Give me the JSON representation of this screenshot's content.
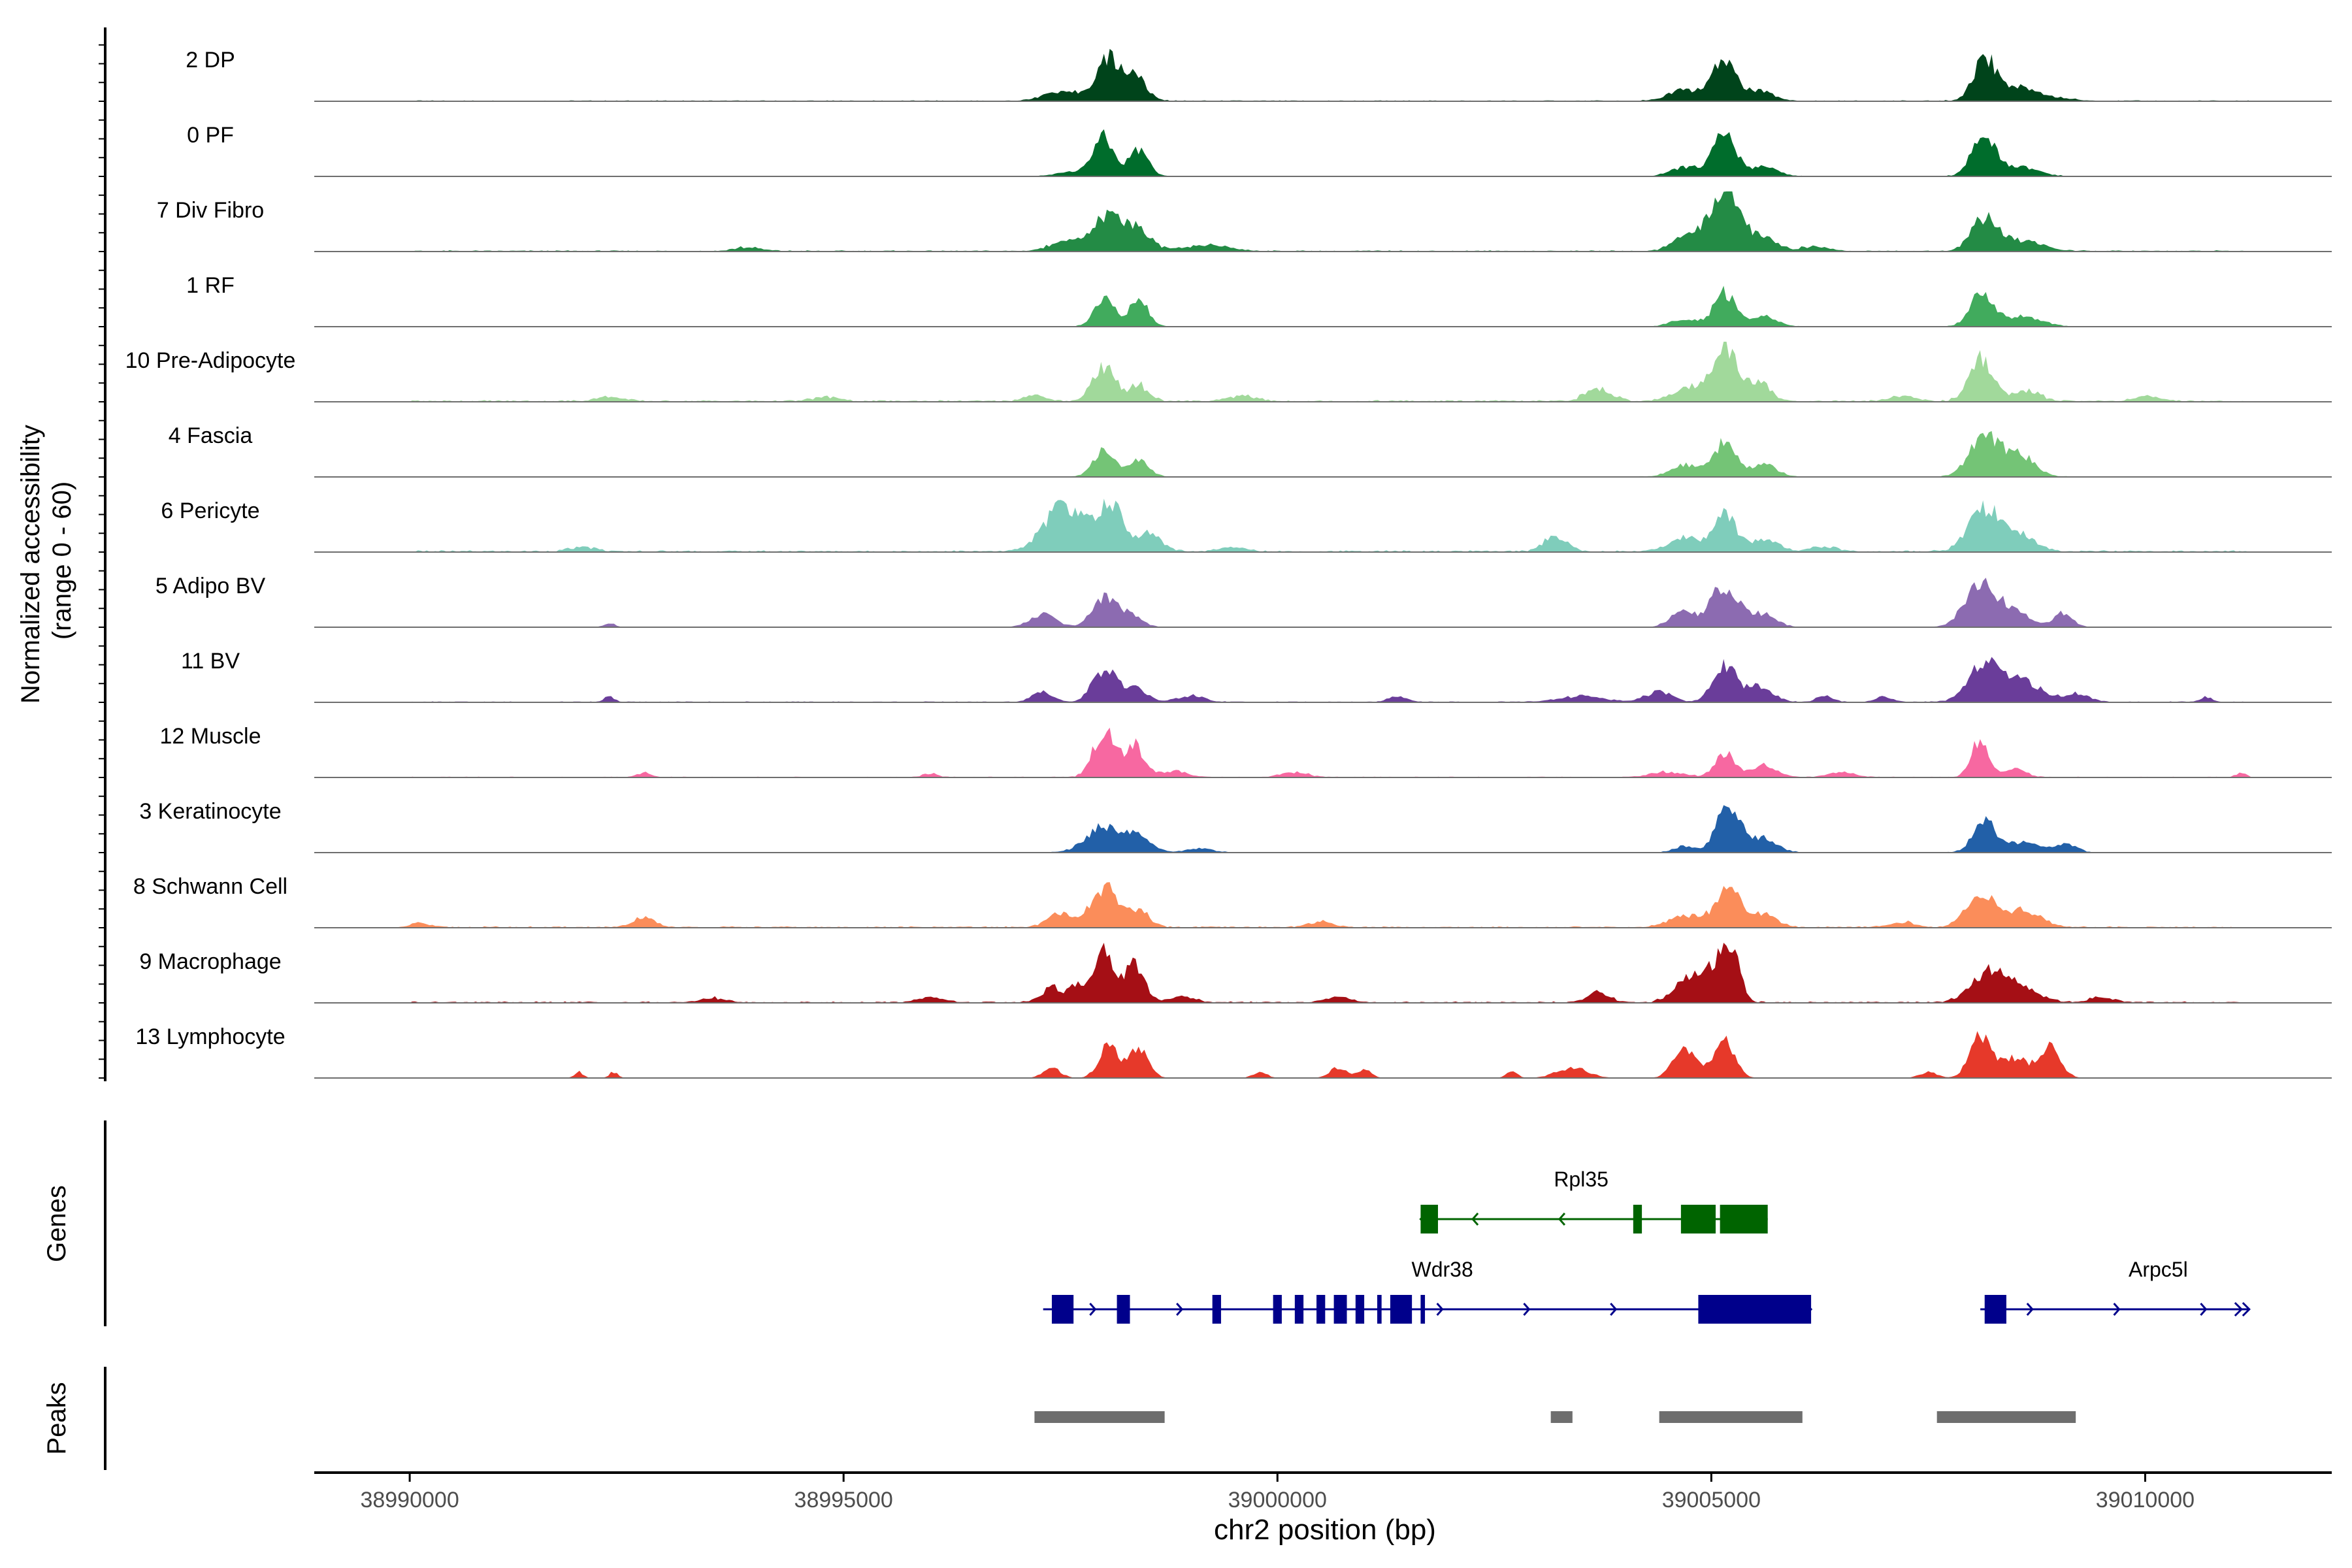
{
  "chart_data": {
    "type": "area",
    "title": "",
    "ylabel_lines": [
      "Normalized accessibility",
      "(range 0 - 60)"
    ],
    "y_range": [
      0,
      60
    ],
    "xlabel": "chr2 position (bp)",
    "xlim": [
      38988900,
      39012150
    ],
    "x_ticks": [
      38990000,
      38995000,
      39000000,
      39005000,
      39010000
    ],
    "x_tick_labels": [
      "38990000",
      "38995000",
      "39000000",
      "39005000",
      "39010000"
    ],
    "tracks": [
      {
        "name": "2 DP",
        "color": "#00441b",
        "background": 1.2,
        "peaks": [
          [
            38998050,
            120,
            34
          ],
          [
            38998350,
            120,
            24
          ],
          [
            38997900,
            320,
            9
          ],
          [
            38997400,
            150,
            5
          ],
          [
            39004700,
            180,
            11
          ],
          [
            39005150,
            130,
            40
          ],
          [
            39005550,
            150,
            10
          ],
          [
            39008150,
            130,
            42
          ],
          [
            39008500,
            180,
            11
          ],
          [
            39008800,
            250,
            5
          ]
        ]
      },
      {
        "name": "0 PF",
        "color": "#006d2c",
        "background": 0.8,
        "peaks": [
          [
            38998000,
            110,
            34
          ],
          [
            38998400,
            110,
            26
          ],
          [
            38997800,
            250,
            6
          ],
          [
            39004700,
            160,
            9
          ],
          [
            39005150,
            130,
            42
          ],
          [
            39005600,
            150,
            10
          ],
          [
            39008130,
            130,
            42
          ],
          [
            39008550,
            200,
            9
          ]
        ]
      },
      {
        "name": "7 Div Fibro",
        "color": "#238b45",
        "background": 1.4,
        "peaks": [
          [
            38998050,
            180,
            32
          ],
          [
            38998400,
            150,
            18
          ],
          [
            38997600,
            200,
            10
          ],
          [
            38999200,
            250,
            6
          ],
          [
            38993900,
            150,
            4
          ],
          [
            39004700,
            150,
            14
          ],
          [
            39005150,
            170,
            62
          ],
          [
            39005600,
            150,
            14
          ],
          [
            39008150,
            150,
            32
          ],
          [
            39008600,
            220,
            10
          ],
          [
            39006200,
            150,
            5
          ]
        ]
      },
      {
        "name": "1 RF",
        "color": "#41ab5d",
        "background": 0.7,
        "peaks": [
          [
            38998000,
            110,
            30
          ],
          [
            38998400,
            110,
            28
          ],
          [
            39004700,
            150,
            8
          ],
          [
            39005150,
            120,
            34
          ],
          [
            39005600,
            150,
            10
          ],
          [
            39008120,
            130,
            36
          ],
          [
            39008600,
            200,
            10
          ]
        ]
      },
      {
        "name": "10 Pre-Adipocyte",
        "color": "#a1d99b",
        "background": 2.0,
        "peaks": [
          [
            38998000,
            130,
            34
          ],
          [
            38998400,
            110,
            16
          ],
          [
            38997200,
            120,
            6
          ],
          [
            38999600,
            150,
            5
          ],
          [
            38992300,
            150,
            4
          ],
          [
            38994800,
            150,
            4
          ],
          [
            39003700,
            150,
            12
          ],
          [
            39004700,
            180,
            12
          ],
          [
            39005150,
            150,
            56
          ],
          [
            39005550,
            130,
            18
          ],
          [
            39008100,
            130,
            42
          ],
          [
            39008600,
            180,
            10
          ],
          [
            39007200,
            150,
            5
          ],
          [
            39010000,
            150,
            4
          ]
        ]
      },
      {
        "name": "4 Fascia",
        "color": "#74c476",
        "background": 0.8,
        "peaks": [
          [
            38998000,
            120,
            26
          ],
          [
            38998400,
            110,
            18
          ],
          [
            39004700,
            160,
            12
          ],
          [
            39005150,
            130,
            34
          ],
          [
            39005600,
            150,
            12
          ],
          [
            39008150,
            170,
            40
          ],
          [
            39008550,
            170,
            22
          ]
        ]
      },
      {
        "name": "6 Pericyte",
        "color": "#7fcdbb",
        "background": 2.0,
        "peaks": [
          [
            38997500,
            200,
            42
          ],
          [
            38997900,
            180,
            24
          ],
          [
            38998100,
            110,
            36
          ],
          [
            38998500,
            150,
            18
          ],
          [
            39003200,
            130,
            16
          ],
          [
            39004700,
            180,
            14
          ],
          [
            39005150,
            130,
            36
          ],
          [
            39005600,
            150,
            12
          ],
          [
            39008150,
            180,
            42
          ],
          [
            39008550,
            180,
            16
          ],
          [
            38992000,
            150,
            4
          ],
          [
            38999500,
            150,
            4
          ],
          [
            39006300,
            150,
            5
          ]
        ]
      },
      {
        "name": "5 Adipo BV",
        "color": "#8c6bb1",
        "background": 0.4,
        "peaks": [
          [
            38997300,
            150,
            12
          ],
          [
            38998000,
            130,
            30
          ],
          [
            38998300,
            130,
            12
          ],
          [
            39004650,
            130,
            16
          ],
          [
            39005150,
            170,
            40
          ],
          [
            39005600,
            150,
            12
          ],
          [
            39008100,
            170,
            46
          ],
          [
            39008500,
            150,
            18
          ],
          [
            39009050,
            110,
            14
          ],
          [
            38992300,
            60,
            4
          ]
        ]
      },
      {
        "name": "11 BV",
        "color": "#6a3d9a",
        "background": 1.2,
        "peaks": [
          [
            38997300,
            120,
            10
          ],
          [
            38998000,
            130,
            32
          ],
          [
            38998350,
            130,
            16
          ],
          [
            38999000,
            150,
            6
          ],
          [
            39001400,
            100,
            6
          ],
          [
            39003500,
            250,
            6
          ],
          [
            39004400,
            150,
            10
          ],
          [
            39005150,
            130,
            38
          ],
          [
            39005550,
            150,
            16
          ],
          [
            39006300,
            100,
            5
          ],
          [
            39008150,
            180,
            38
          ],
          [
            39008600,
            200,
            20
          ],
          [
            39009200,
            150,
            8
          ],
          [
            39010700,
            60,
            5
          ],
          [
            38992300,
            60,
            5
          ],
          [
            39007000,
            100,
            5
          ]
        ]
      },
      {
        "name": "12 Muscle",
        "color": "#f768a1",
        "background": 1.0,
        "peaks": [
          [
            38998000,
            120,
            46
          ],
          [
            38998350,
            110,
            32
          ],
          [
            38998800,
            150,
            6
          ],
          [
            39000200,
            150,
            5
          ],
          [
            39005150,
            110,
            24
          ],
          [
            39005600,
            150,
            12
          ],
          [
            39006500,
            150,
            5
          ],
          [
            39008100,
            100,
            38
          ],
          [
            39008500,
            120,
            8
          ],
          [
            39004500,
            200,
            5
          ],
          [
            38992700,
            80,
            4
          ],
          [
            38996000,
            80,
            4
          ],
          [
            39011100,
            60,
            4
          ]
        ]
      },
      {
        "name": "3 Keratinocyte",
        "color": "#2260a8",
        "background": 0.8,
        "peaks": [
          [
            38998000,
            200,
            26
          ],
          [
            38998400,
            150,
            14
          ],
          [
            38999100,
            150,
            4
          ],
          [
            39004700,
            120,
            6
          ],
          [
            39005200,
            130,
            48
          ],
          [
            39005600,
            150,
            14
          ],
          [
            39008150,
            130,
            30
          ],
          [
            39008600,
            200,
            10
          ],
          [
            39009100,
            110,
            8
          ]
        ]
      },
      {
        "name": "8 Schwann Cell",
        "color": "#fb8d5a",
        "background": 1.6,
        "peaks": [
          [
            38997500,
            150,
            14
          ],
          [
            38998000,
            150,
            40
          ],
          [
            38998400,
            120,
            16
          ],
          [
            38992700,
            120,
            10
          ],
          [
            38990100,
            120,
            4
          ],
          [
            39004700,
            180,
            12
          ],
          [
            39005200,
            150,
            38
          ],
          [
            39005600,
            150,
            12
          ],
          [
            39008100,
            160,
            34
          ],
          [
            39008600,
            200,
            16
          ],
          [
            39000500,
            150,
            5
          ],
          [
            39007200,
            150,
            5
          ]
        ]
      },
      {
        "name": "9 Macrophage",
        "color": "#a50f15",
        "background": 1.6,
        "peaks": [
          [
            38997400,
            120,
            14
          ],
          [
            38997700,
            100,
            16
          ],
          [
            38998000,
            110,
            52
          ],
          [
            38998350,
            110,
            40
          ],
          [
            38998900,
            150,
            6
          ],
          [
            38996000,
            150,
            5
          ],
          [
            39003700,
            120,
            10
          ],
          [
            39004700,
            150,
            20
          ],
          [
            39005200,
            110,
            62
          ],
          [
            39004950,
            120,
            24
          ],
          [
            39008200,
            200,
            30
          ],
          [
            39008600,
            200,
            12
          ],
          [
            39009500,
            150,
            5
          ],
          [
            38993500,
            150,
            4
          ],
          [
            39000700,
            150,
            5
          ]
        ]
      },
      {
        "name": "13 Lymphocyte",
        "color": "#e6392a",
        "background": 0.0,
        "peaks": [
          [
            38997400,
            100,
            10
          ],
          [
            38998050,
            110,
            32
          ],
          [
            38998400,
            110,
            30
          ],
          [
            38991950,
            50,
            6
          ],
          [
            38992350,
            50,
            6
          ],
          [
            39000700,
            100,
            10
          ],
          [
            39003400,
            180,
            10
          ],
          [
            39004700,
            130,
            30
          ],
          [
            39005150,
            120,
            36
          ],
          [
            39008100,
            120,
            44
          ],
          [
            39008500,
            150,
            20
          ],
          [
            39008900,
            120,
            32
          ],
          [
            39007500,
            100,
            6
          ],
          [
            39002700,
            60,
            8
          ],
          [
            38999800,
            80,
            6
          ],
          [
            39001000,
            80,
            8
          ]
        ]
      }
    ],
    "genes_label": "Genes",
    "genes": [
      {
        "name": "Rpl35",
        "color": "#006400",
        "start": 39001650,
        "end": 39005650,
        "strand": "-",
        "exons": [
          [
            39001650,
            39001850
          ],
          [
            39004100,
            39004200
          ],
          [
            39004650,
            39005050
          ],
          [
            39005100,
            39005650
          ]
        ]
      },
      {
        "name": "Wdr38",
        "color": "#00008b",
        "start": 38997300,
        "end": 39006150,
        "strand": "+",
        "exons": [
          [
            38997400,
            38997650
          ],
          [
            38998150,
            38998300
          ],
          [
            38999250,
            38999350
          ],
          [
            38999950,
            39000050
          ],
          [
            39000200,
            39000300
          ],
          [
            39000450,
            39000550
          ],
          [
            39000650,
            39000800
          ],
          [
            39000900,
            39001000
          ],
          [
            39001150,
            39001200
          ],
          [
            39001300,
            39001550
          ],
          [
            39001650,
            39001700
          ],
          [
            39004850,
            39006150
          ]
        ]
      },
      {
        "name": "Arpc5l",
        "color": "#00008b",
        "start": 39008100,
        "end": 39011200,
        "strand": "+",
        "exons": [
          [
            39008150,
            39008400
          ]
        ]
      }
    ],
    "peaks_label": "Peaks",
    "peak_regions": [
      [
        38997200,
        38998700
      ],
      [
        39003150,
        39003400
      ],
      [
        39004400,
        39006050
      ],
      [
        39007600,
        39009200
      ]
    ]
  }
}
